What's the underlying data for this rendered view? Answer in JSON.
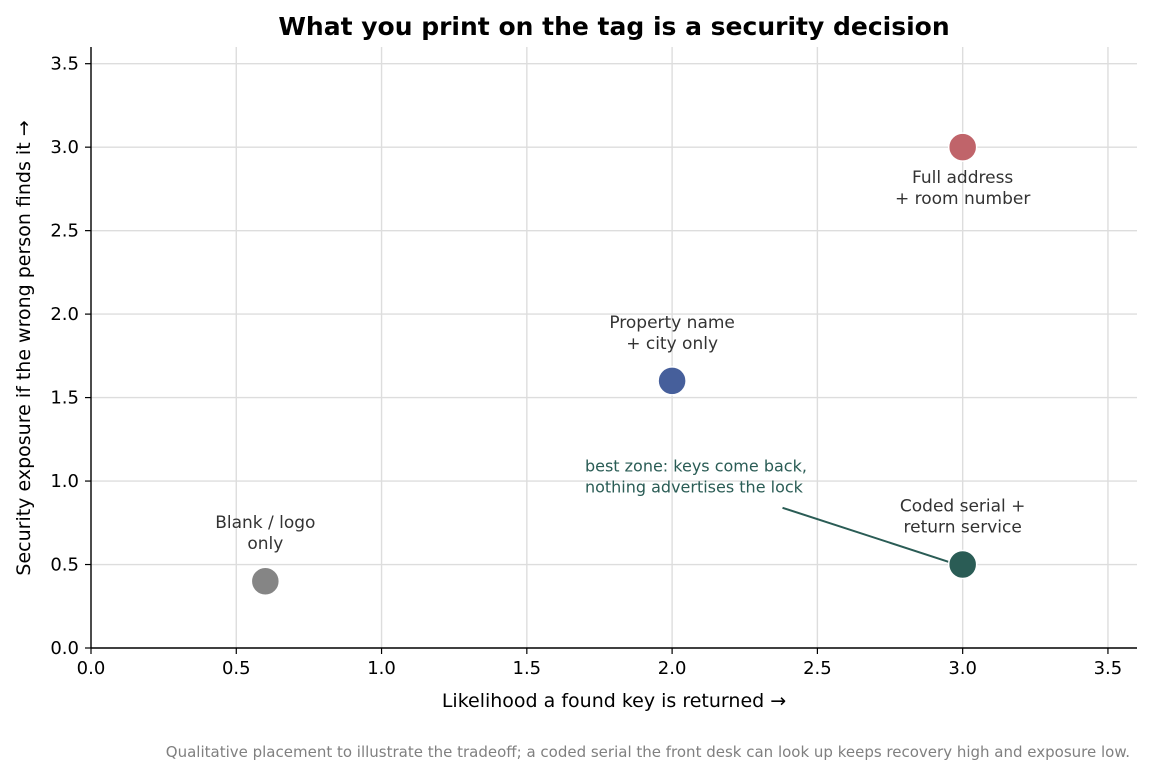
{
  "chart_data": {
    "type": "scatter",
    "title": "What you print on the tag is a security decision",
    "xlabel": "Likelihood a found key is returned  →",
    "ylabel": "Security exposure if the wrong person finds it  →",
    "xlim": [
      0,
      3.6
    ],
    "ylim": [
      0,
      3.6
    ],
    "xticks": [
      "0.0",
      "0.5",
      "1.0",
      "1.5",
      "2.0",
      "2.5",
      "3.0",
      "3.5"
    ],
    "yticks": [
      "0.0",
      "0.5",
      "1.0",
      "1.5",
      "2.0",
      "2.5",
      "3.0",
      "3.5"
    ],
    "xtick_values": [
      0,
      0.5,
      1.0,
      1.5,
      2.0,
      2.5,
      3.0,
      3.5
    ],
    "ytick_values": [
      0,
      0.5,
      1.0,
      1.5,
      2.0,
      2.5,
      3.0,
      3.5
    ],
    "grid": true,
    "points": [
      {
        "x": 0.6,
        "y": 0.4,
        "label": [
          "Blank / logo",
          "only"
        ],
        "label_side": "above",
        "color": "#858585"
      },
      {
        "x": 2.0,
        "y": 1.6,
        "label": [
          "Property name",
          "+ city only"
        ],
        "label_side": "above",
        "color": "#465f9b"
      },
      {
        "x": 3.0,
        "y": 3.0,
        "label": [
          "Full address",
          "+ room number"
        ],
        "label_side": "below",
        "color": "#c0646a"
      },
      {
        "x": 3.0,
        "y": 0.5,
        "label": [
          "Coded serial +",
          "return service"
        ],
        "label_side": "above",
        "color": "#2a5c55"
      }
    ],
    "annotation": {
      "text": [
        "best zone: keys come back,",
        "nothing advertises the lock"
      ],
      "text_x": 1.7,
      "text_y": 0.95,
      "arrow_from": [
        2.38,
        0.84
      ],
      "arrow_to": [
        2.98,
        0.5
      ],
      "color": "#2a5c55"
    }
  },
  "footnote": "Qualitative placement to illustrate the tradeoff; a coded serial the front desk can look up keeps recovery high and exposure low."
}
